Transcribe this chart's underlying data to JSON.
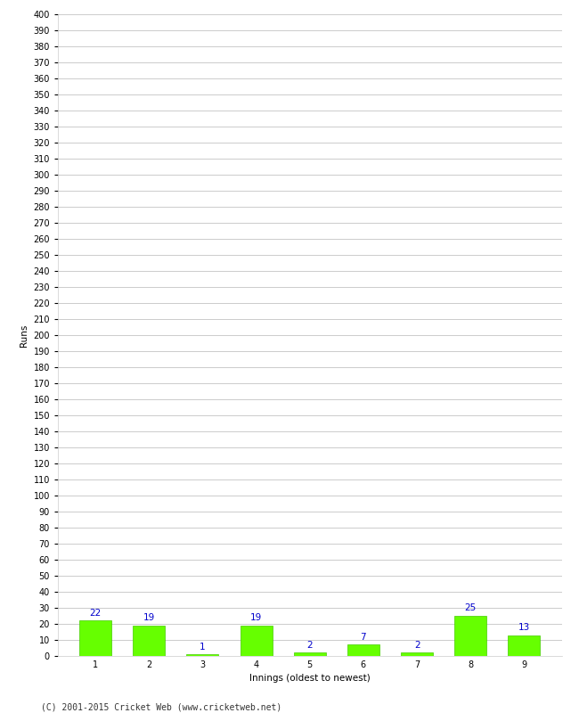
{
  "xlabel": "Innings (oldest to newest)",
  "ylabel": "Runs",
  "categories": [
    "1",
    "2",
    "3",
    "4",
    "5",
    "6",
    "7",
    "8",
    "9"
  ],
  "values": [
    22,
    19,
    1,
    19,
    2,
    7,
    2,
    25,
    13
  ],
  "bar_color": "#66ff00",
  "bar_edge_color": "#44cc00",
  "label_color": "#0000cc",
  "label_fontsize": 7.5,
  "ylabel_fontsize": 7.5,
  "xlabel_fontsize": 7.5,
  "tick_fontsize": 7,
  "ylim": [
    0,
    400
  ],
  "ytick_step": 10,
  "background_color": "#ffffff",
  "plot_bg_color": "#ffffff",
  "grid_color": "#cccccc",
  "footer": "(C) 2001-2015 Cricket Web (www.cricketweb.net)"
}
